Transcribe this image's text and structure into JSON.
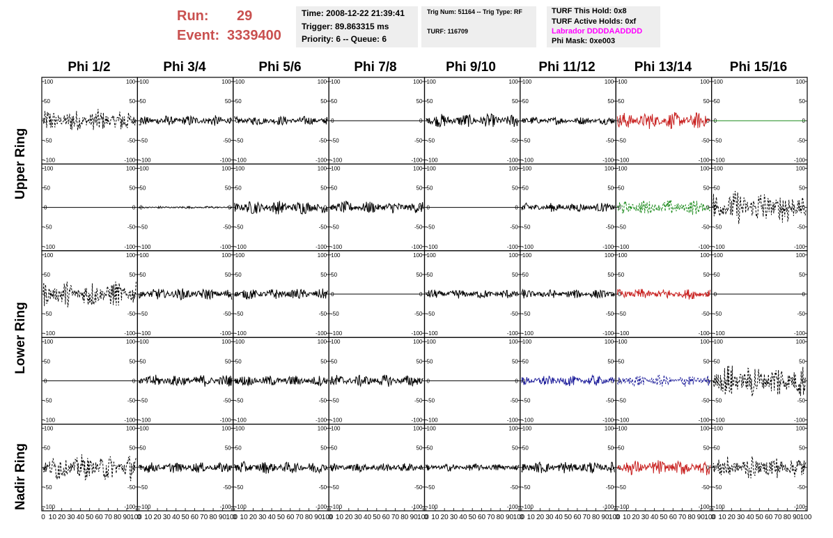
{
  "header": {
    "run_label": "Run:",
    "run_value": "29",
    "event_label": "Event:",
    "event_value": "3339400",
    "time": "Time: 2008-12-22 21:39:41",
    "trigger": "Trigger: 89.863315 ms",
    "priority": "Priority: 6 -- Queue: 6",
    "trig_num": "Trig Num: 51164 -- Trig Type: RF",
    "turf": "TURF: 116709",
    "turf_hold": "TURF This Hold: 0x8",
    "turf_active": "TURF Active Holds: 0xf",
    "labrador": "Labrador DDDDAADDDD",
    "phi_mask": "Phi Mask: 0xe003"
  },
  "colors": {
    "title_red": "#c9504f",
    "labrador_magenta": "#ff00ff",
    "trace_black": "#000000",
    "trace_red": "#c8201f",
    "trace_green": "#1a8a1a",
    "trace_blue": "#1c1c9a"
  },
  "chart_data": {
    "type": "line",
    "columns": [
      "Phi 1/2",
      "Phi 3/4",
      "Phi 5/6",
      "Phi 7/8",
      "Phi 9/10",
      "Phi 11/12",
      "Phi 13/14",
      "Phi 15/16"
    ],
    "rows": [
      "Upper Ring",
      "Lower Ring",
      "Nadir Ring"
    ],
    "xlim": [
      0,
      100
    ],
    "ylim": [
      -100,
      100
    ],
    "x_ticks": [
      0,
      10,
      20,
      30,
      40,
      50,
      60,
      70,
      80,
      90,
      100
    ],
    "y_ticks": [
      -100,
      -50,
      0,
      50,
      100
    ],
    "x_tick_labels": [
      "0",
      "10",
      "20",
      "30",
      "40",
      "50",
      "60",
      "70",
      "80",
      "90",
      "100"
    ],
    "y_tick_labels": [
      "-100",
      "-50",
      "0",
      "50",
      "100"
    ],
    "panels": [
      [
        {
          "amp": 30,
          "style": "dash",
          "color": "black"
        },
        {
          "amp": 14,
          "style": "solid",
          "color": "black"
        },
        {
          "amp": 12,
          "style": "solid",
          "color": "black"
        },
        {
          "amp": 0,
          "style": "solid",
          "color": "black"
        },
        {
          "amp": 18,
          "style": "solid",
          "color": "black"
        },
        {
          "amp": 10,
          "style": "solid",
          "color": "black"
        },
        {
          "amp": 22,
          "style": "solid",
          "color": "red"
        },
        {
          "amp": 0,
          "style": "solid",
          "color": "green"
        }
      ],
      [
        {
          "amp": 0,
          "style": "solid",
          "color": "black"
        },
        {
          "amp": 3,
          "style": "solid",
          "color": "black"
        },
        {
          "amp": 18,
          "style": "solid",
          "color": "black"
        },
        {
          "amp": 16,
          "style": "solid",
          "color": "black"
        },
        {
          "amp": 0,
          "style": "solid",
          "color": "black"
        },
        {
          "amp": 12,
          "style": "solid",
          "color": "black"
        },
        {
          "amp": 20,
          "style": "dash",
          "color": "green"
        },
        {
          "amp": 45,
          "style": "dash",
          "color": "black"
        }
      ],
      [
        {
          "amp": 35,
          "style": "dash",
          "color": "black"
        },
        {
          "amp": 15,
          "style": "solid",
          "color": "black"
        },
        {
          "amp": 14,
          "style": "solid",
          "color": "black"
        },
        {
          "amp": 0,
          "style": "solid",
          "color": "black"
        },
        {
          "amp": 12,
          "style": "solid",
          "color": "black"
        },
        {
          "amp": 12,
          "style": "solid",
          "color": "black"
        },
        {
          "amp": 14,
          "style": "solid",
          "color": "red"
        },
        {
          "amp": 0,
          "style": "solid",
          "color": "black"
        }
      ],
      [
        {
          "amp": 0,
          "style": "solid",
          "color": "black"
        },
        {
          "amp": 16,
          "style": "solid",
          "color": "black"
        },
        {
          "amp": 14,
          "style": "solid",
          "color": "black"
        },
        {
          "amp": 16,
          "style": "solid",
          "color": "black"
        },
        {
          "amp": 0,
          "style": "solid",
          "color": "black"
        },
        {
          "amp": 14,
          "style": "solid",
          "color": "blue"
        },
        {
          "amp": 16,
          "style": "dash",
          "color": "blue"
        },
        {
          "amp": 45,
          "style": "dash",
          "color": "black"
        }
      ],
      [
        {
          "amp": 35,
          "style": "dash",
          "color": "black"
        },
        {
          "amp": 14,
          "style": "solid",
          "color": "black"
        },
        {
          "amp": 16,
          "style": "solid",
          "color": "black"
        },
        {
          "amp": 12,
          "style": "solid",
          "color": "black"
        },
        {
          "amp": 10,
          "style": "solid",
          "color": "black"
        },
        {
          "amp": 16,
          "style": "solid",
          "color": "black"
        },
        {
          "amp": 20,
          "style": "solid",
          "color": "red"
        },
        {
          "amp": 30,
          "style": "dash",
          "color": "black"
        }
      ]
    ]
  }
}
